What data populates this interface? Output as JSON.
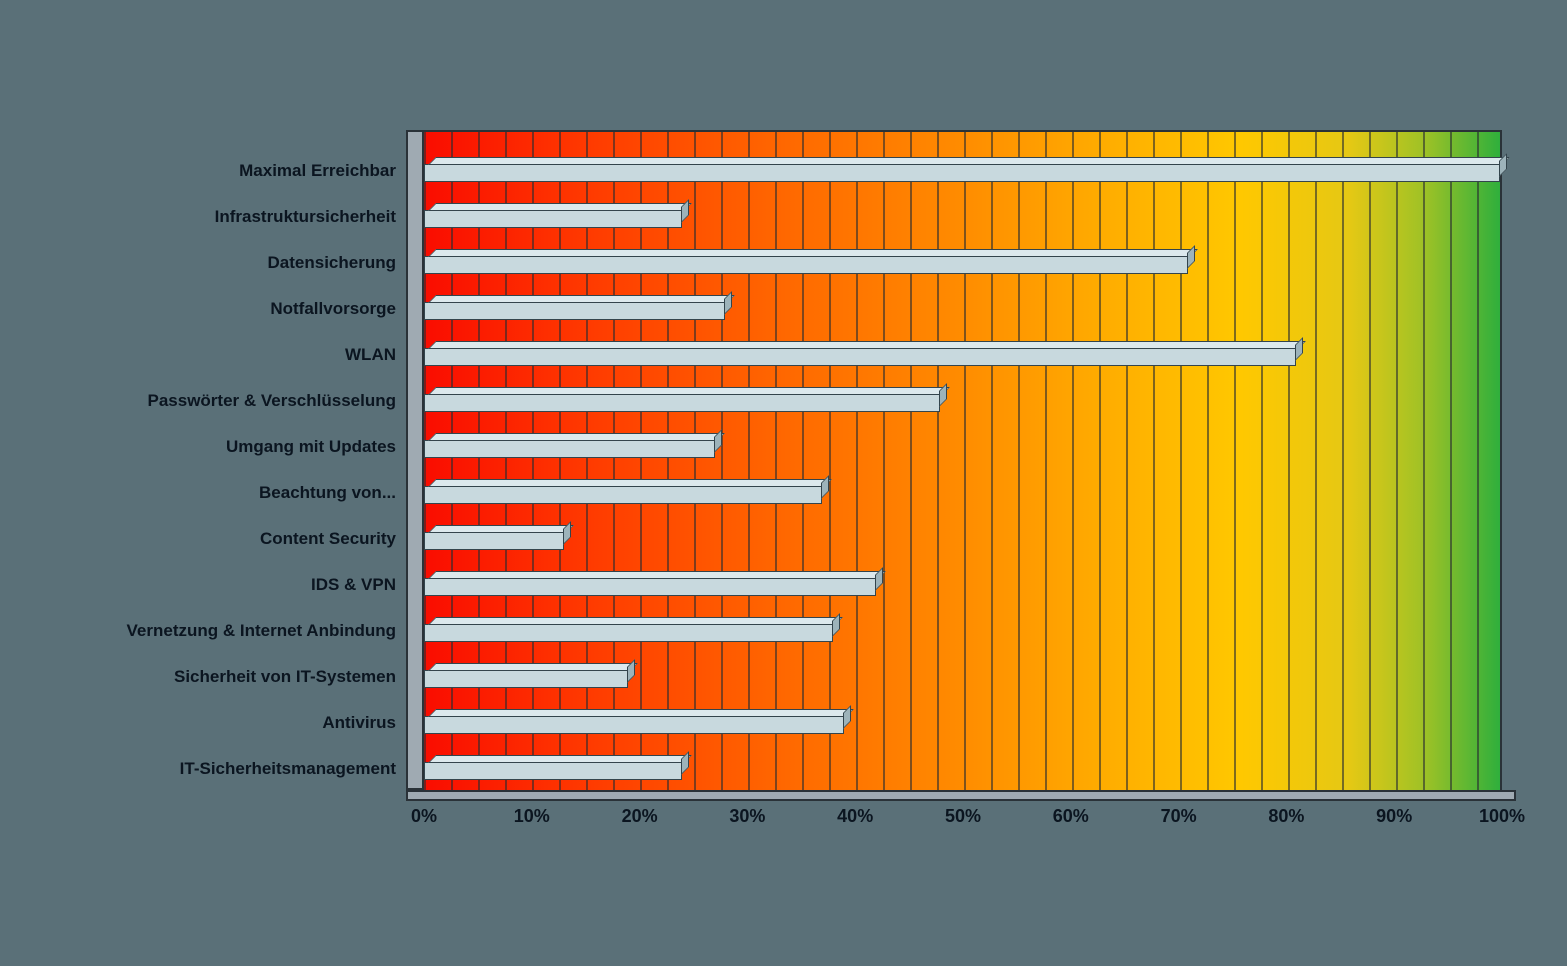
{
  "background_color": "#5A7078",
  "chart_data": {
    "type": "bar",
    "orientation": "horizontal",
    "title": "",
    "xlabel": "",
    "ylabel": "",
    "xlim": [
      0,
      100
    ],
    "x_tick_labels": [
      "0%",
      "10%",
      "20%",
      "30%",
      "40%",
      "50%",
      "60%",
      "70%",
      "80%",
      "90%",
      "100%"
    ],
    "grid": "vertical, minor gridlines every 2.5%",
    "legend": null,
    "categories": [
      "Maximal Erreichbar",
      "Infrastruktursicherheit",
      "Datensicherung",
      "Notfallvorsorge",
      "WLAN",
      "Passwörter & Verschlüsselung",
      "Umgang mit Updates",
      "Beachtung von...",
      "Content Security",
      "IDS & VPN",
      "Vernetzung & Internet Anbindung",
      "Sicherheit von IT-Systemen",
      "Antivirus",
      "IT-Sicherheitsmanagement"
    ],
    "values": [
      100,
      24,
      71,
      28,
      81,
      48,
      27,
      37,
      13,
      42,
      38,
      19,
      39,
      24
    ],
    "bar_color": "#C8D9DE",
    "wall_gradient": [
      "#FA0C00",
      "#FF8C00",
      "#FFC800",
      "#2FAF3C"
    ],
    "style": "3D horizontal bar chart on red-to-green gradient back wall"
  }
}
